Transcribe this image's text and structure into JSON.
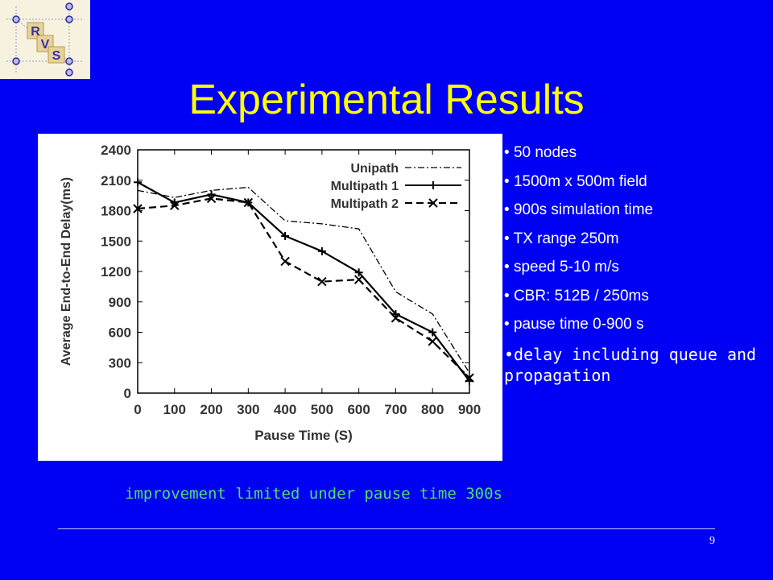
{
  "slide": {
    "title": "Experimental Results",
    "page_number": "9",
    "caption": "improvement limited under pause time 300s",
    "logo_letters": [
      "R",
      "V",
      "S"
    ],
    "colors": {
      "background": "#0000f5",
      "title": "#ffff00",
      "caption": "#4fe06a",
      "bullet_text": "#ffffff"
    }
  },
  "bullets": [
    "50 nodes",
    "1500m x 500m field",
    "900s simulation time",
    "TX range 250m",
    "speed 5-10 m/s",
    "CBR: 512B / 250ms",
    "pause time 0-900 s",
    "delay including queue and propagation"
  ],
  "chart_data": {
    "type": "line",
    "xlabel": "Pause Time (S)",
    "ylabel": "Average End-to-End Delay(ms)",
    "x": [
      0,
      100,
      200,
      300,
      400,
      500,
      600,
      700,
      800,
      900
    ],
    "xticks": [
      "0",
      "100",
      "200",
      "300",
      "400",
      "500",
      "600",
      "700",
      "800",
      "900"
    ],
    "yticks": [
      "0",
      "300",
      "600",
      "900",
      "1200",
      "1500",
      "1800",
      "2100",
      "2400"
    ],
    "xlim": [
      0,
      900
    ],
    "ylim": [
      0,
      2400
    ],
    "legend_position": "top-right",
    "grid": false,
    "series": [
      {
        "name": "Unipath",
        "marker": "none",
        "dash": "dash-dot",
        "values": [
          2000,
          1930,
          2000,
          2030,
          1700,
          1670,
          1620,
          1000,
          780,
          200
        ]
      },
      {
        "name": "Multipath 1",
        "marker": "plus",
        "dash": "solid",
        "values": [
          2080,
          1880,
          1960,
          1880,
          1550,
          1400,
          1190,
          780,
          600,
          120
        ]
      },
      {
        "name": "Multipath 2",
        "marker": "cross",
        "dash": "dashed",
        "values": [
          1820,
          1850,
          1920,
          1880,
          1300,
          1100,
          1120,
          740,
          510,
          150
        ]
      }
    ]
  }
}
